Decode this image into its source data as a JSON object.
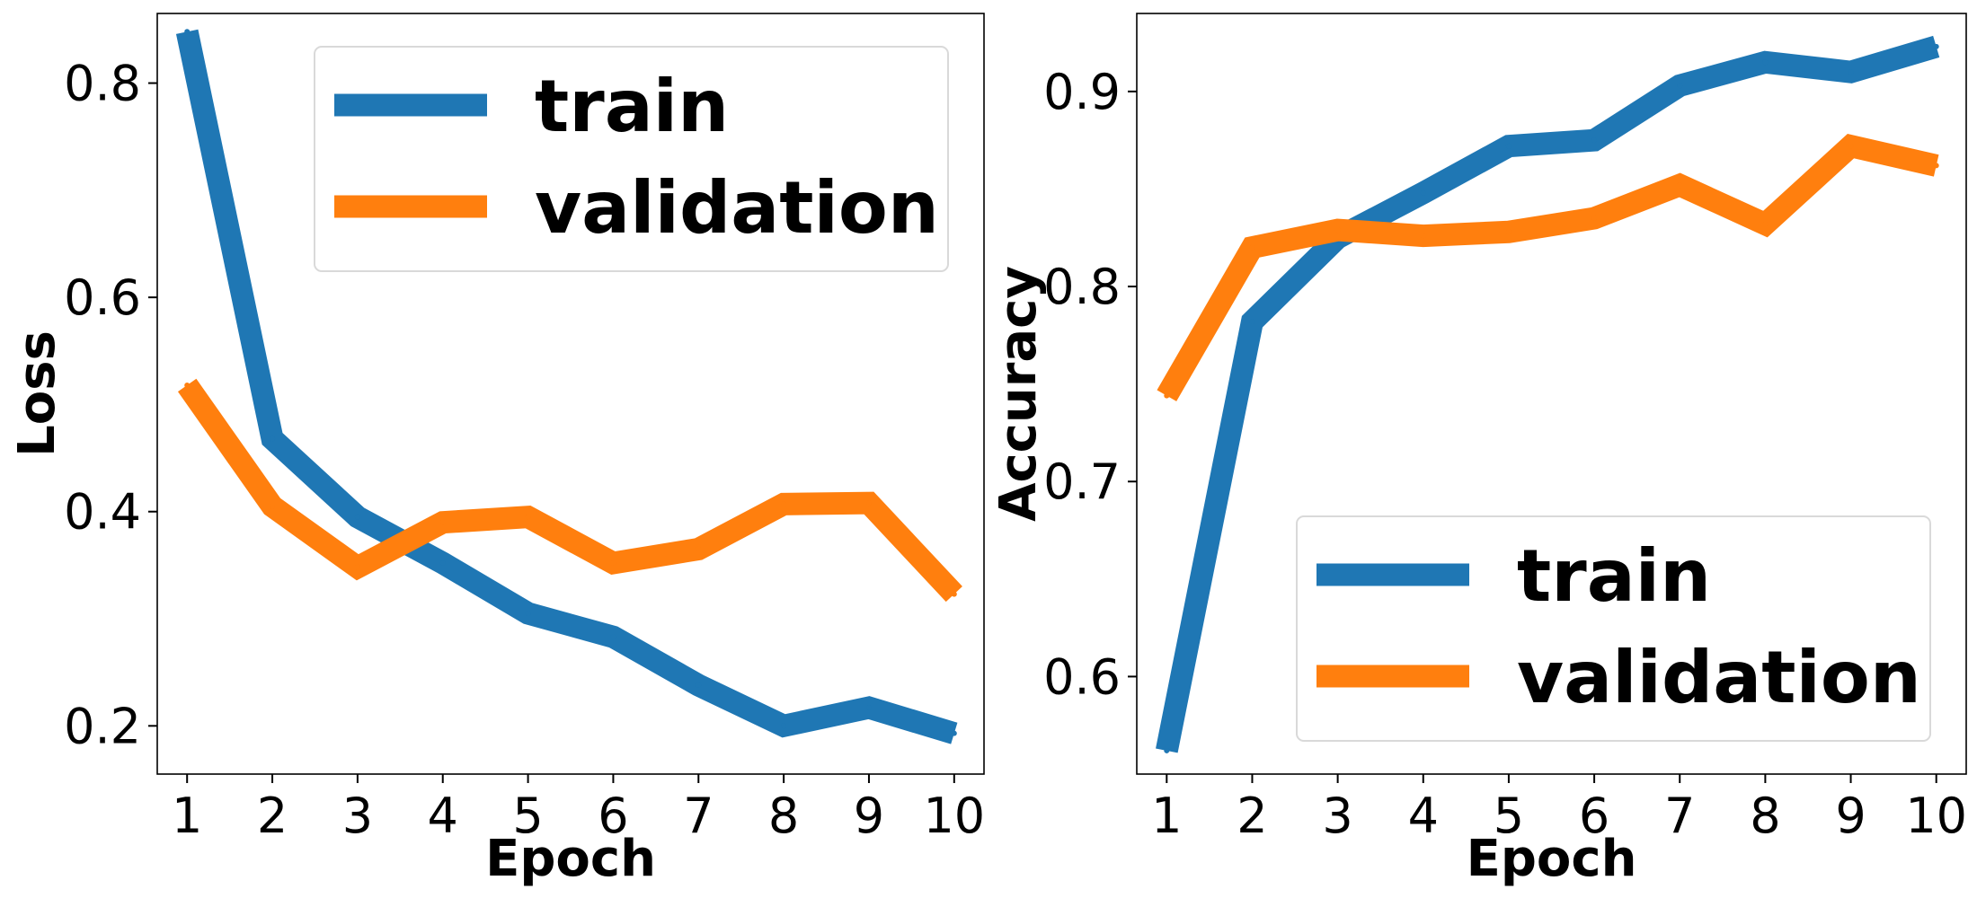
{
  "colors": {
    "train": "#1f77b4",
    "validation": "#ff7f0e"
  },
  "chart_data": [
    {
      "type": "line",
      "title": "",
      "xlabel": "Epoch",
      "ylabel": "Loss",
      "x": [
        1,
        2,
        3,
        4,
        5,
        6,
        7,
        8,
        9,
        10
      ],
      "xlim": [
        0.65,
        10.35
      ],
      "ylim": [
        0.155,
        0.865
      ],
      "yticks": [
        0.2,
        0.4,
        0.6,
        0.8
      ],
      "ytick_labels": [
        "0.2",
        "0.4",
        "0.6",
        "0.8"
      ],
      "xtick_labels": [
        "1",
        "2",
        "3",
        "4",
        "5",
        "6",
        "7",
        "8",
        "9",
        "10"
      ],
      "legend": {
        "placement": "top-right",
        "entries": [
          "train",
          "validation"
        ]
      },
      "series": [
        {
          "name": "train",
          "values": [
            0.848,
            0.468,
            0.395,
            0.352,
            0.305,
            0.283,
            0.238,
            0.2,
            0.217,
            0.193
          ]
        },
        {
          "name": "validation",
          "values": [
            0.518,
            0.405,
            0.348,
            0.39,
            0.395,
            0.352,
            0.365,
            0.407,
            0.408,
            0.323
          ]
        }
      ]
    },
    {
      "type": "line",
      "title": "",
      "xlabel": "Epoch",
      "ylabel": "Accuracy",
      "x": [
        1,
        2,
        3,
        4,
        5,
        6,
        7,
        8,
        9,
        10
      ],
      "xlim": [
        0.65,
        10.35
      ],
      "ylim": [
        0.55,
        0.94
      ],
      "yticks": [
        0.6,
        0.7,
        0.8,
        0.9
      ],
      "ytick_labels": [
        "0.6",
        "0.7",
        "0.8",
        "0.9"
      ],
      "xtick_labels": [
        "1",
        "2",
        "3",
        "4",
        "5",
        "6",
        "7",
        "8",
        "9",
        "10"
      ],
      "legend": {
        "placement": "bottom-right",
        "entries": [
          "train",
          "validation"
        ]
      },
      "series": [
        {
          "name": "train",
          "values": [
            0.562,
            0.782,
            0.825,
            0.848,
            0.872,
            0.875,
            0.903,
            0.915,
            0.91,
            0.923
          ]
        },
        {
          "name": "validation",
          "values": [
            0.744,
            0.82,
            0.829,
            0.826,
            0.828,
            0.835,
            0.852,
            0.832,
            0.872,
            0.862
          ]
        }
      ]
    }
  ]
}
